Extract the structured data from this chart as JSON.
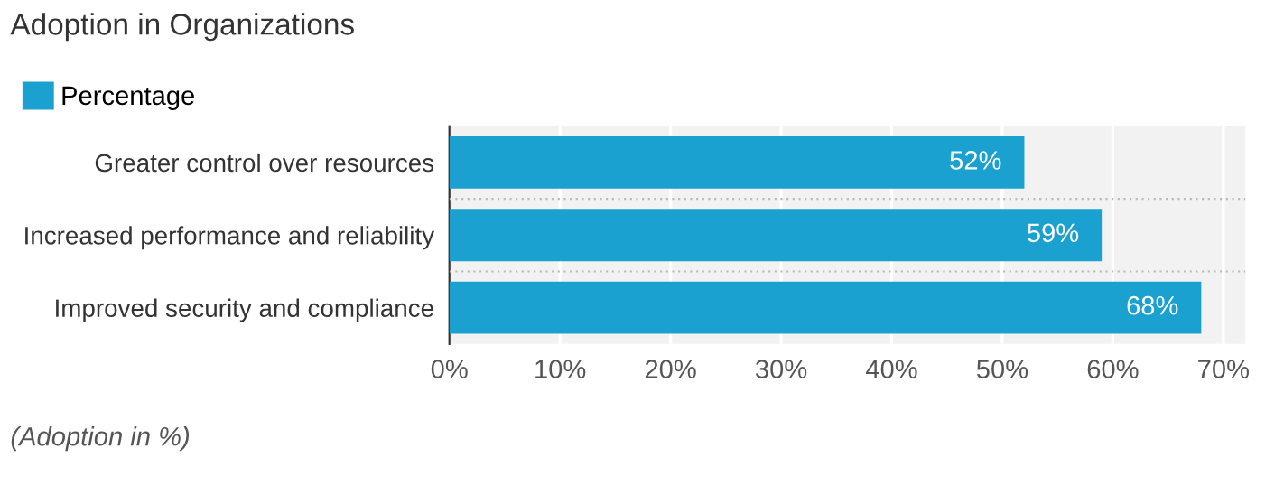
{
  "chart_data": {
    "type": "bar",
    "orientation": "horizontal",
    "title": "Adoption in Organizations",
    "categories": [
      "Greater control over resources",
      "Increased performance and reliability",
      "Improved security and compliance"
    ],
    "series": [
      {
        "name": "Percentage",
        "color": "#1ba1cf",
        "values": [
          52,
          59,
          68
        ],
        "value_labels": [
          "52%",
          "59%",
          "68%"
        ]
      }
    ],
    "xlim": [
      0,
      72
    ],
    "xticks": [
      {
        "value": 0,
        "label": "0%"
      },
      {
        "value": 10,
        "label": "10%"
      },
      {
        "value": 20,
        "label": "20%"
      },
      {
        "value": 30,
        "label": "30%"
      },
      {
        "value": 40,
        "label": "40%"
      },
      {
        "value": 50,
        "label": "50%"
      },
      {
        "value": 60,
        "label": "60%"
      },
      {
        "value": 70,
        "label": "70%"
      }
    ],
    "grid": "x",
    "legend": "top left",
    "annotations": [
      "(Adoption in %)"
    ]
  }
}
